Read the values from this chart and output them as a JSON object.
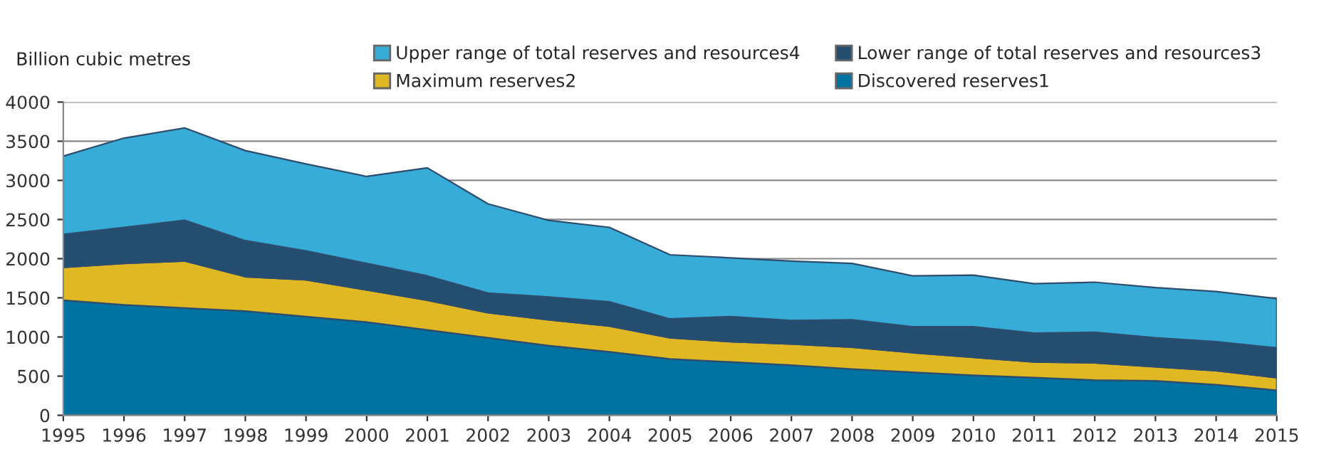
{
  "chart_data": {
    "type": "area",
    "stacked": true,
    "ylabel": "Billion cubic metres",
    "x": [
      1995,
      1996,
      1997,
      1998,
      1999,
      2000,
      2001,
      2002,
      2003,
      2004,
      2005,
      2006,
      2007,
      2008,
      2009,
      2010,
      2011,
      2012,
      2013,
      2014,
      2015
    ],
    "xlim": [
      1995,
      2015
    ],
    "xticks": [
      1995,
      1996,
      1997,
      1998,
      1999,
      2000,
      2001,
      2002,
      2003,
      2004,
      2005,
      2006,
      2007,
      2008,
      2009,
      2010,
      2011,
      2012,
      2013,
      2014,
      2015
    ],
    "ylim": [
      0,
      4000
    ],
    "yticks": [
      0,
      500,
      1000,
      1500,
      2000,
      2500,
      3000,
      3500,
      4000
    ],
    "grid": "y",
    "legend": "top",
    "series": [
      {
        "name": "Discovered reserves1",
        "color": "#0073a3",
        "values": [
          1470,
          1410,
          1370,
          1330,
          1260,
          1190,
          1090,
          990,
          890,
          810,
          720,
          680,
          640,
          590,
          550,
          510,
          480,
          450,
          440,
          390,
          320
        ]
      },
      {
        "name": "Maximum reserves2",
        "color": "#e0b823",
        "values": [
          420,
          530,
          600,
          440,
          470,
          410,
          380,
          320,
          330,
          330,
          270,
          260,
          270,
          280,
          250,
          230,
          200,
          220,
          180,
          180,
          160
        ]
      },
      {
        "name": "Lower range of total reserves and resources3",
        "color": "#244e70",
        "values": [
          420,
          460,
          520,
          460,
          370,
          340,
          310,
          250,
          290,
          310,
          240,
          320,
          300,
          350,
          330,
          390,
          370,
          390,
          370,
          370,
          380
        ]
      },
      {
        "name": "Upper range of total reserves and resources4",
        "color": "#38acd8",
        "values": [
          1000,
          1140,
          1180,
          1150,
          1110,
          1110,
          1380,
          1140,
          980,
          950,
          820,
          750,
          760,
          720,
          650,
          660,
          630,
          640,
          640,
          640,
          630
        ]
      }
    ]
  }
}
